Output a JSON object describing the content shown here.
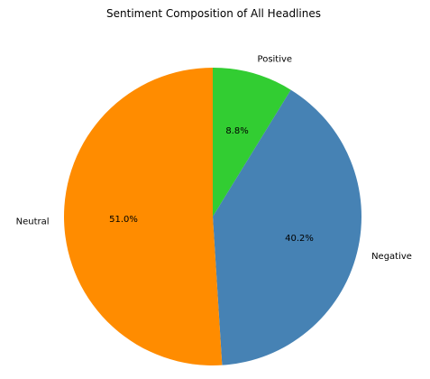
{
  "chart_data": {
    "type": "pie",
    "title": "Sentiment Composition of All Headlines",
    "slices": [
      {
        "label": "Positive",
        "value": 8.8,
        "pct_label": "8.8%",
        "color": "#32cd32"
      },
      {
        "label": "Negative",
        "value": 40.2,
        "pct_label": "40.2%",
        "color": "#4682b4"
      },
      {
        "label": "Neutral",
        "value": 51.0,
        "pct_label": "51.0%",
        "color": "#ff8c00"
      }
    ],
    "start_angle_deg": 90,
    "direction": "clockwise"
  }
}
